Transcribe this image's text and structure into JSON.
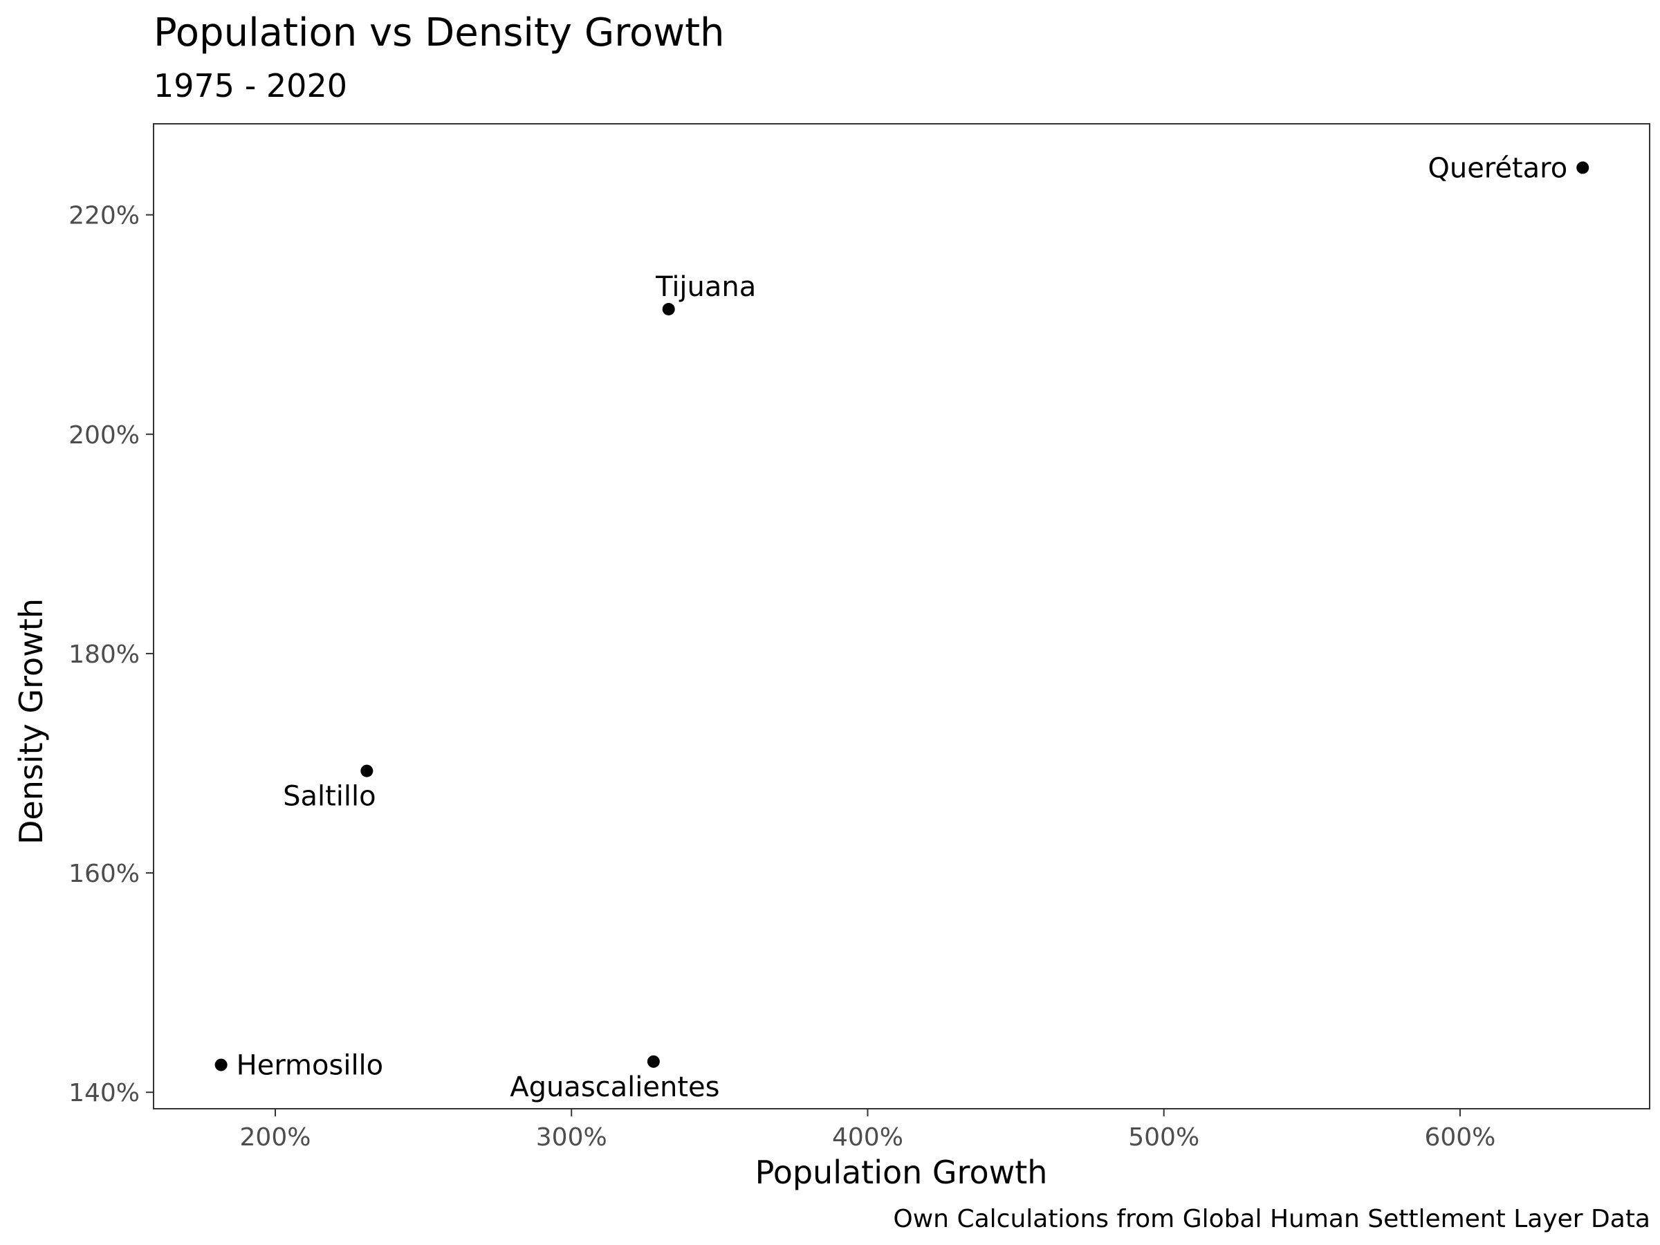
{
  "chart_data": {
    "type": "scatter",
    "title": "Population vs Density Growth",
    "subtitle": "1975 - 2020",
    "xlabel": "Population Growth",
    "ylabel": "Density Growth",
    "caption": "Own Calculations from Global Human Settlement Layer Data",
    "xlim": [
      158.9,
      664.0
    ],
    "ylim": [
      138.5,
      228.3
    ],
    "x_ticks": [
      200,
      300,
      400,
      500,
      600
    ],
    "x_tick_labels": [
      "200%",
      "300%",
      "400%",
      "500%",
      "600%"
    ],
    "y_ticks": [
      140,
      160,
      180,
      200,
      220
    ],
    "y_tick_labels": [
      "140%",
      "160%",
      "180%",
      "200%",
      "220%"
    ],
    "grid": false,
    "legend": "none",
    "points": [
      {
        "label": "Querétaro",
        "x": 641.4,
        "y": 224.3,
        "label_pos": "left"
      },
      {
        "label": "Tijuana",
        "x": 332.8,
        "y": 211.4,
        "label_pos": "above"
      },
      {
        "label": "Saltillo",
        "x": 230.9,
        "y": 169.3,
        "label_pos": "below-left"
      },
      {
        "label": "Hermosillo",
        "x": 181.7,
        "y": 142.5,
        "label_pos": "right"
      },
      {
        "label": "Aguascalientes",
        "x": 327.7,
        "y": 142.8,
        "label_pos": "below-left"
      }
    ],
    "colors": {
      "point": "#000000",
      "panel_border": "#333333",
      "tick_text": "#4d4d4d",
      "background": "#ffffff"
    }
  }
}
